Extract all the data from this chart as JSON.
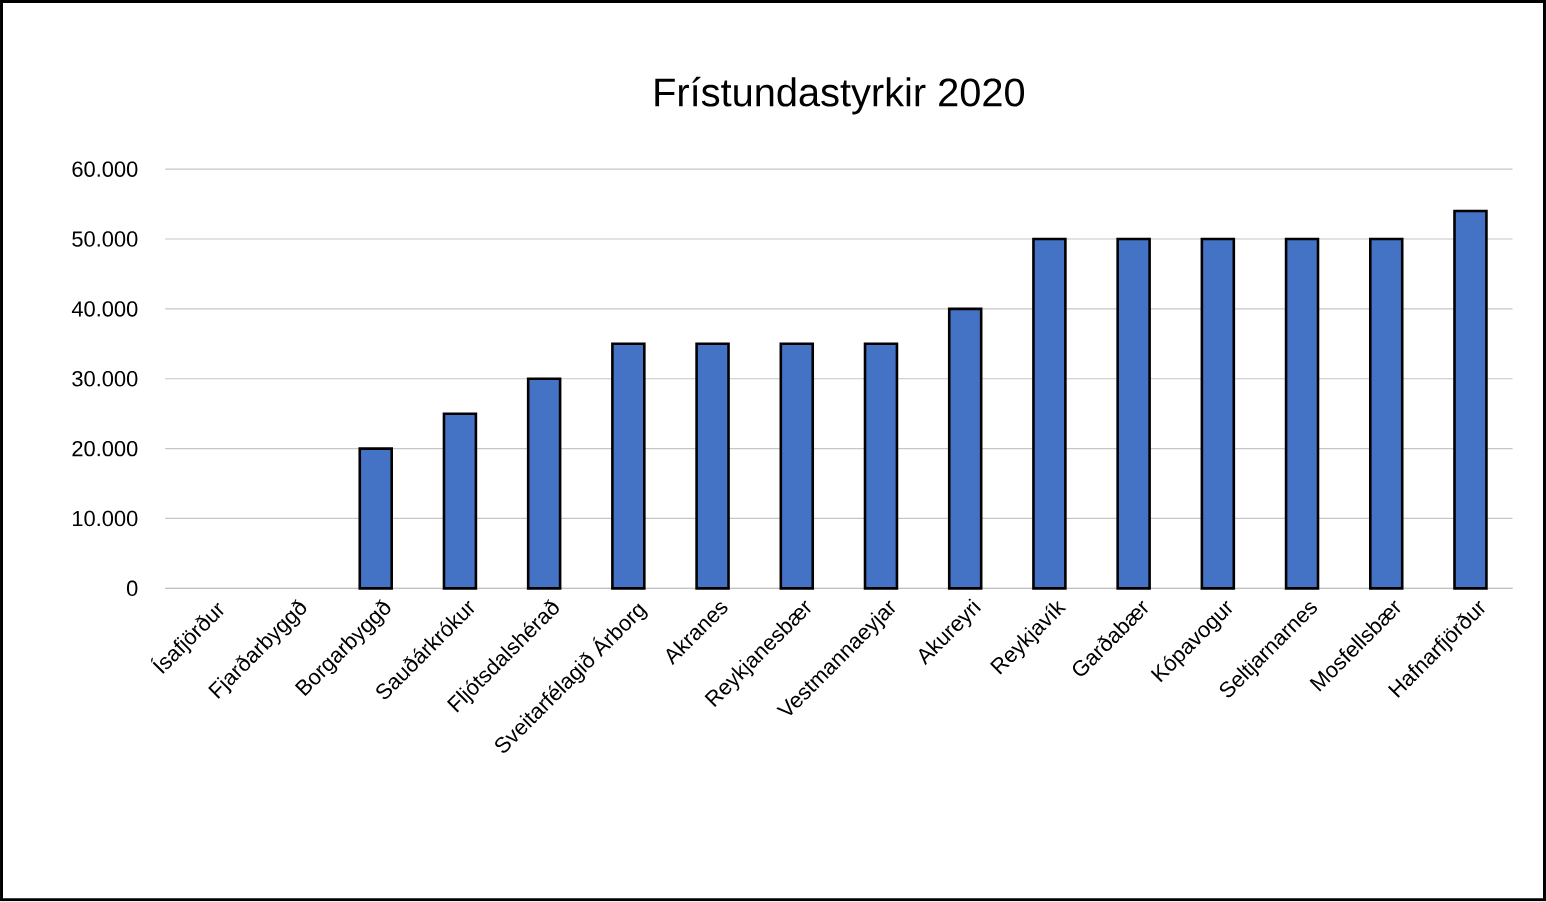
{
  "chart_data": {
    "type": "bar",
    "title": "Frístundastyrkir 2020",
    "categories": [
      "Ísafjörður",
      "Fjarðarbyggð",
      "Borgarbyggð",
      "Sauðárkrókur",
      "Fljótsdalshérað",
      "Sveitarfélagið Árborg",
      "Akranes",
      "Reykjanesbær",
      "Vestmannaeyjar",
      "Akureyri",
      "Reykjavík",
      "Garðabær",
      "Kópavogur",
      "Seltjarnarnes",
      "Mosfellsbær",
      "Hafnarfjörður"
    ],
    "values": [
      0,
      0,
      20000,
      25000,
      30000,
      35000,
      35000,
      35000,
      35000,
      40000,
      50000,
      50000,
      50000,
      50000,
      50000,
      54000
    ],
    "color": "#4472c4",
    "ylim": [
      0,
      60000
    ],
    "yticks": [
      {
        "value": 0,
        "label": "0"
      },
      {
        "value": 10000,
        "label": "10.000"
      },
      {
        "value": 20000,
        "label": "20.000"
      },
      {
        "value": 30000,
        "label": "30.000"
      },
      {
        "value": 40000,
        "label": "40.000"
      },
      {
        "value": 50000,
        "label": "50.000"
      },
      {
        "value": 60000,
        "label": "60.000"
      }
    ],
    "grid": "y"
  }
}
